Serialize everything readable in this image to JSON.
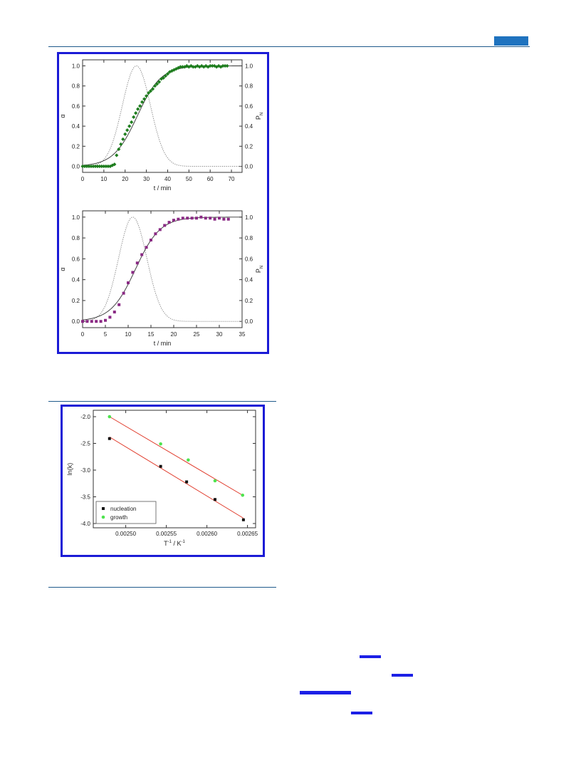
{
  "chart_data": [
    {
      "type": "scatter",
      "panel": "top",
      "xlabel": "t / min",
      "ylabel": "α",
      "y2label": "P",
      "y2label_sub": "N",
      "xlim": [
        0,
        75
      ],
      "ylim": [
        -0.06,
        1.06
      ],
      "xticks": [
        0,
        10,
        20,
        30,
        40,
        50,
        60,
        70
      ],
      "yticks": [
        0.0,
        0.2,
        0.4,
        0.6,
        0.8,
        1.0
      ],
      "ytick_labels": [
        "0.0",
        "0.2",
        "0.4",
        "0.6",
        "0.8",
        "1.0"
      ],
      "marker_color": "#1e7d1e",
      "marker": "diamond",
      "x": [
        0,
        1,
        2,
        3,
        4,
        5,
        6,
        7,
        8,
        9,
        10,
        11,
        12,
        13,
        14,
        15,
        16,
        17,
        18,
        19,
        20,
        21,
        22,
        23,
        24,
        25,
        26,
        27,
        28,
        29,
        30,
        31,
        32,
        33,
        34,
        35,
        36,
        37,
        38,
        39,
        40,
        41,
        42,
        43,
        44,
        45,
        46,
        47,
        48,
        49,
        50,
        51,
        52,
        53,
        54,
        55,
        56,
        57,
        58,
        59,
        60,
        61,
        62,
        63,
        64,
        65,
        66,
        67,
        68
      ],
      "y": [
        0,
        0,
        0,
        0,
        0,
        0,
        0,
        0,
        0,
        0,
        0,
        0,
        0,
        0,
        0.01,
        0.02,
        0.11,
        0.17,
        0.22,
        0.27,
        0.32,
        0.36,
        0.4,
        0.44,
        0.49,
        0.53,
        0.57,
        0.6,
        0.64,
        0.67,
        0.7,
        0.73,
        0.75,
        0.77,
        0.8,
        0.82,
        0.84,
        0.87,
        0.88,
        0.9,
        0.92,
        0.94,
        0.95,
        0.96,
        0.97,
        0.98,
        0.99,
        0.99,
        0.99,
        1.0,
        0.99,
        1.0,
        0.99,
        0.99,
        1.0,
        0.99,
        1.0,
        0.99,
        1.0,
        0.99,
        1.0,
        1.0,
        1.0,
        0.99,
        1.0,
        0.99,
        1.0,
        1.0,
        1.0
      ],
      "fit": {
        "model": "sigmoid-fit",
        "k": 0.105,
        "t0": 25.7,
        "tau": 9.5
      },
      "pn_curve": {
        "model": "gaussian",
        "center": 25.3,
        "sigma": 6.6
      }
    },
    {
      "type": "scatter",
      "panel": "bottom",
      "xlabel": "t / min",
      "ylabel": "α",
      "y2label": "P",
      "y2label_sub": "N",
      "xlim": [
        0,
        35
      ],
      "ylim": [
        -0.06,
        1.06
      ],
      "xticks": [
        0,
        5,
        10,
        15,
        20,
        25,
        30,
        35
      ],
      "yticks": [
        0.0,
        0.2,
        0.4,
        0.6,
        0.8,
        1.0
      ],
      "ytick_labels": [
        "0.0",
        "0.2",
        "0.4",
        "0.6",
        "0.8",
        "1.0"
      ],
      "marker_color": "#8a2a84",
      "marker": "square",
      "x": [
        0,
        1,
        2,
        3,
        4,
        5,
        6,
        7,
        8,
        9,
        10,
        11,
        12,
        13,
        14,
        15,
        16,
        17,
        18,
        19,
        20,
        21,
        22,
        23,
        24,
        25,
        26,
        27,
        28,
        29,
        30,
        31,
        32
      ],
      "y": [
        0,
        0,
        0,
        0,
        0,
        0.01,
        0.04,
        0.09,
        0.16,
        0.27,
        0.37,
        0.47,
        0.56,
        0.64,
        0.71,
        0.78,
        0.84,
        0.88,
        0.92,
        0.95,
        0.97,
        0.98,
        0.99,
        0.99,
        0.99,
        0.99,
        1.0,
        0.99,
        0.99,
        0.98,
        0.99,
        0.98,
        0.98
      ],
      "fit": {
        "model": "sigmoid-fit",
        "k": 0.28,
        "t0": 11.6,
        "tau": 4.6
      },
      "pn_curve": {
        "model": "gaussian",
        "center": 11.0,
        "sigma": 3.1
      }
    },
    {
      "type": "scatter",
      "panel": "arrhenius",
      "xlabel": "T",
      "xlabel_sup": "-1",
      "xlabel_tail": " / K",
      "xlabel_tail_sup": "-1",
      "ylabel": "ln(k)",
      "xlim": [
        0.00246,
        0.00266
      ],
      "ylim": [
        -4.08,
        -1.88
      ],
      "xticks": [
        0.0025,
        0.00255,
        0.0026,
        0.00265
      ],
      "xtick_labels": [
        "0.00250",
        "0.00255",
        "0.00260",
        "0.00265"
      ],
      "yticks": [
        -4.0,
        -3.5,
        -3.0,
        -2.5,
        -2.0
      ],
      "ytick_labels": [
        "-4.0",
        "-3.5",
        "-3.0",
        "-2.5",
        "-2.0"
      ],
      "fit_line_color": "#e03a2a",
      "legend_position": "bottom-left",
      "series": [
        {
          "name": "nucleation",
          "color": "#111111",
          "marker": "square",
          "x": [
            0.00248,
            0.002543,
            0.002575,
            0.00261,
            0.002645
          ],
          "y": [
            -2.41,
            -2.93,
            -3.22,
            -3.55,
            -3.93
          ],
          "fit": [
            [
              0.00248,
              -2.38
            ],
            [
              0.002645,
              -3.9
            ]
          ]
        },
        {
          "name": "growth",
          "color": "#4ee34e",
          "marker": "circle",
          "x": [
            0.00248,
            0.002543,
            0.002577,
            0.00261,
            0.002644
          ],
          "y": [
            -2.0,
            -2.51,
            -2.81,
            -3.2,
            -3.47
          ],
          "fit": [
            [
              0.00248,
              -2.0
            ],
            [
              0.002645,
              -3.48
            ]
          ]
        }
      ]
    }
  ]
}
